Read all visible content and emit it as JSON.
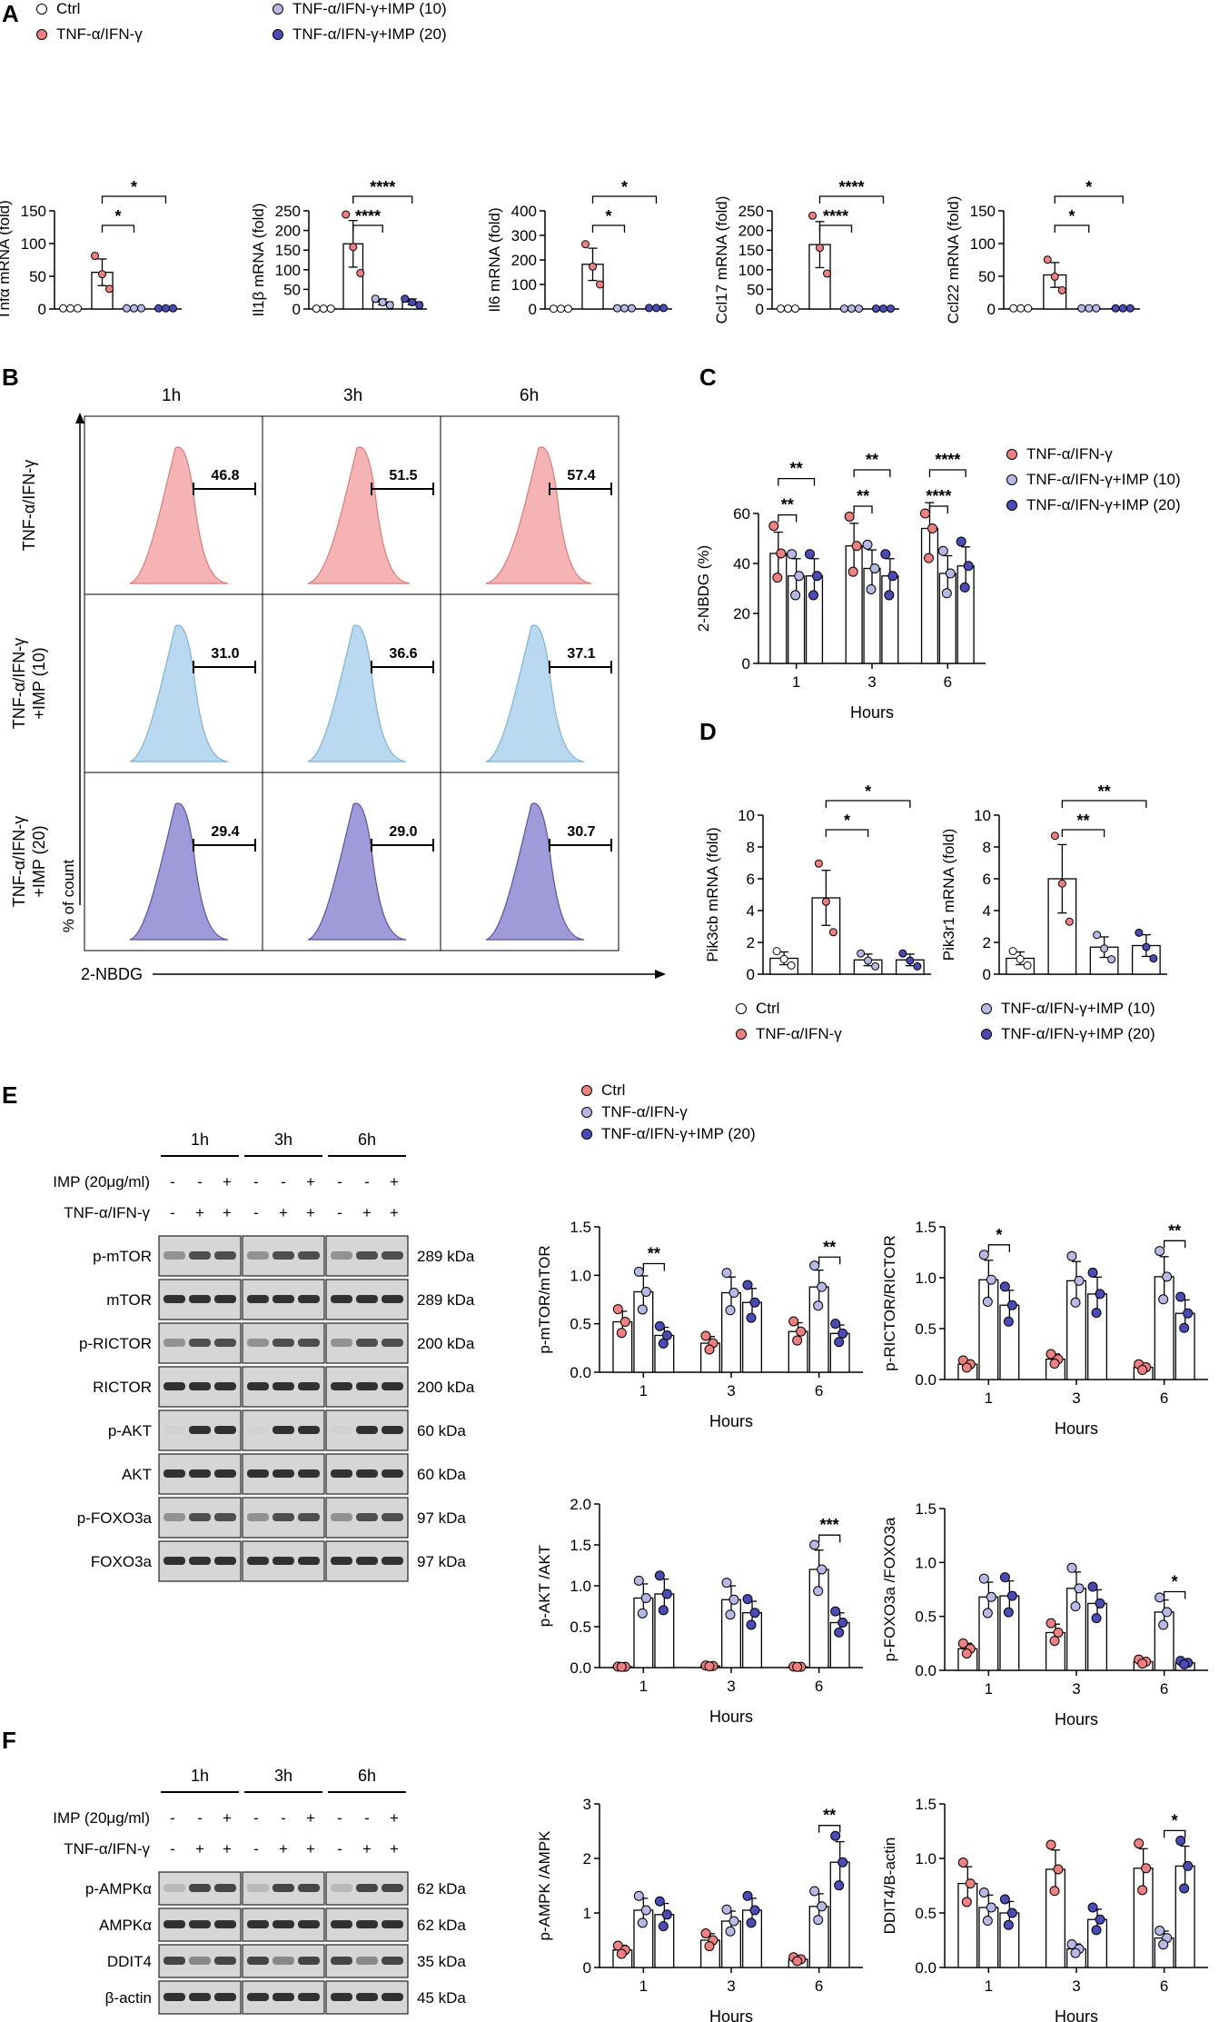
{
  "colors": {
    "ctrl": "#ffffff",
    "tnf": "#f07f7f",
    "imp10": "#b8b8e6",
    "imp20": "#4b4bb8",
    "flow_tnf": "#f6b3b3",
    "flow_imp10": "#b8d9f0",
    "flow_imp20": "#9f9ad8"
  },
  "panels": {
    "a": "A",
    "b": "B",
    "c": "C",
    "d": "D",
    "e": "E",
    "f": "F"
  },
  "legend_a": [
    "Ctrl",
    "TNF-α/IFN-γ",
    "TNF-α/IFN-γ+IMP (10)",
    "TNF-α/IFN-γ+IMP (20)"
  ],
  "legend_c": [
    "TNF-α/IFN-γ",
    "TNF-α/IFN-γ+IMP (10)",
    "TNF-α/IFN-γ+IMP (20)"
  ],
  "legend_d": [
    "Ctrl",
    "TNF-α/IFN-γ",
    "TNF-α/IFN-γ+IMP (10)",
    "TNF-α/IFN-γ+IMP (20)"
  ],
  "legend_e": [
    "Ctrl",
    "TNF-α/IFN-γ",
    "TNF-α/IFN-γ+IMP (20)"
  ],
  "flow": {
    "times": [
      "1h",
      "3h",
      "6h"
    ],
    "rows": [
      "TNF-α/IFN-γ",
      "TNF-α/IFN-γ\n+IMP (10)",
      "TNF-α/IFN-γ\n+IMP (20)"
    ],
    "values": [
      [
        "46.8",
        "51.5",
        "57.4"
      ],
      [
        "31.0",
        "36.6",
        "37.1"
      ],
      [
        "29.4",
        "29.0",
        "30.7"
      ]
    ],
    "ylabel": "% of count",
    "xlabel": "2-NBDG"
  },
  "chart_data": [
    {
      "id": "a1",
      "type": "bar",
      "ylabel": "Tnfα mRNA (fold)",
      "ylim": [
        0,
        150
      ],
      "ticks": [
        0,
        50,
        100,
        150
      ],
      "categories": [
        "Ctrl",
        "TNF-α/IFN-γ",
        "IMP (10)",
        "IMP (20)"
      ],
      "values": [
        1,
        56,
        1,
        1
      ],
      "sig": [
        {
          "from": 1,
          "to": 2,
          "label": "*"
        },
        {
          "from": 1,
          "to": 3,
          "label": "*"
        }
      ]
    },
    {
      "id": "a2",
      "type": "bar",
      "ylabel": "Il1β mRNA (fold)",
      "ylim": [
        0,
        250
      ],
      "ticks": [
        0,
        50,
        100,
        150,
        200,
        250
      ],
      "categories": [
        "Ctrl",
        "TNF-α/IFN-γ",
        "IMP (10)",
        "IMP (20)"
      ],
      "values": [
        1,
        166,
        18,
        18
      ],
      "sig": [
        {
          "from": 1,
          "to": 2,
          "label": "****"
        },
        {
          "from": 1,
          "to": 3,
          "label": "****"
        }
      ]
    },
    {
      "id": "a3",
      "type": "bar",
      "ylabel": "Il6 mRNA (fold)",
      "ylim": [
        0,
        400
      ],
      "ticks": [
        0,
        100,
        200,
        300,
        400
      ],
      "categories": [
        "Ctrl",
        "TNF-α/IFN-γ",
        "IMP (10)",
        "IMP (20)"
      ],
      "values": [
        1,
        182,
        3,
        4
      ],
      "sig": [
        {
          "from": 1,
          "to": 2,
          "label": "*"
        },
        {
          "from": 1,
          "to": 3,
          "label": "*"
        }
      ]
    },
    {
      "id": "a4",
      "type": "bar",
      "ylabel": "Ccl17 mRNA (fold)",
      "ylim": [
        0,
        250
      ],
      "ticks": [
        0,
        50,
        100,
        150,
        200,
        250
      ],
      "categories": [
        "Ctrl",
        "TNF-α/IFN-γ",
        "IMP (10)",
        "IMP (20)"
      ],
      "values": [
        1,
        164,
        1,
        1
      ],
      "sig": [
        {
          "from": 1,
          "to": 2,
          "label": "****"
        },
        {
          "from": 1,
          "to": 3,
          "label": "****"
        }
      ]
    },
    {
      "id": "a5",
      "type": "bar",
      "ylabel": "Ccl22 mRNA (fold)",
      "ylim": [
        0,
        150
      ],
      "ticks": [
        0,
        50,
        100,
        150
      ],
      "categories": [
        "Ctrl",
        "TNF-α/IFN-γ",
        "IMP (10)",
        "IMP (20)"
      ],
      "values": [
        1,
        52,
        1,
        1
      ],
      "sig": [
        {
          "from": 1,
          "to": 2,
          "label": "*"
        },
        {
          "from": 1,
          "to": 3,
          "label": "*"
        }
      ]
    },
    {
      "id": "c",
      "type": "bar",
      "ylabel": "2-NBDG (%)",
      "xlabel": "Hours",
      "ylim": [
        0,
        60
      ],
      "ticks": [
        0,
        20,
        40,
        60
      ],
      "categories": [
        "1",
        "3",
        "6"
      ],
      "series": [
        {
          "name": "TNF-α/IFN-γ",
          "values": [
            44,
            47,
            54
          ]
        },
        {
          "name": "TNF-α/IFN-γ+IMP (10)",
          "values": [
            35,
            38,
            36
          ]
        },
        {
          "name": "TNF-α/IFN-γ+IMP (20)",
          "values": [
            35,
            35,
            39
          ]
        }
      ],
      "sig": [
        {
          "g": 0,
          "from": 0,
          "to": 1,
          "label": "**"
        },
        {
          "g": 0,
          "from": 0,
          "to": 2,
          "label": "**"
        },
        {
          "g": 1,
          "from": 0,
          "to": 1,
          "label": "**"
        },
        {
          "g": 1,
          "from": 0,
          "to": 2,
          "label": "**"
        },
        {
          "g": 2,
          "from": 0,
          "to": 1,
          "label": "****"
        },
        {
          "g": 2,
          "from": 0,
          "to": 2,
          "label": "****"
        }
      ]
    },
    {
      "id": "d1",
      "type": "bar",
      "ylabel": "Pik3cb mRNA (fold)",
      "ylim": [
        0,
        10
      ],
      "ticks": [
        0,
        2,
        4,
        6,
        8,
        10
      ],
      "categories": [
        "Ctrl",
        "TNF-α/IFN-γ",
        "IMP (10)",
        "IMP (20)"
      ],
      "values": [
        1,
        4.8,
        0.9,
        0.9
      ],
      "sig": [
        {
          "from": 1,
          "to": 2,
          "label": "*"
        },
        {
          "from": 1,
          "to": 3,
          "label": "*"
        }
      ]
    },
    {
      "id": "d2",
      "type": "bar",
      "ylabel": "Pik3r1 mRNA (fold)",
      "ylim": [
        0,
        10
      ],
      "ticks": [
        0,
        2,
        4,
        6,
        8,
        10
      ],
      "categories": [
        "Ctrl",
        "TNF-α/IFN-γ",
        "IMP (10)",
        "IMP (20)"
      ],
      "values": [
        1,
        6,
        1.7,
        1.8
      ],
      "sig": [
        {
          "from": 1,
          "to": 2,
          "label": "**"
        },
        {
          "from": 1,
          "to": 3,
          "label": "**"
        }
      ]
    },
    {
      "id": "e1",
      "type": "bar",
      "ylabel": "p-mTOR/mTOR",
      "xlabel": "Hours",
      "ylim": [
        0,
        1.5
      ],
      "ticks": [
        0,
        0.5,
        1.0,
        1.5
      ],
      "categories": [
        "1",
        "3",
        "6"
      ],
      "series": [
        {
          "name": "Ctrl",
          "values": [
            0.52,
            0.3,
            0.42
          ]
        },
        {
          "name": "TNF-α/IFN-γ",
          "values": [
            0.83,
            0.82,
            0.88
          ]
        },
        {
          "name": "TNF-α/IFN-γ+IMP (20)",
          "values": [
            0.38,
            0.72,
            0.4
          ]
        }
      ],
      "sig": [
        {
          "g": 0,
          "from": 1,
          "to": 2,
          "label": "**"
        },
        {
          "g": 2,
          "from": 1,
          "to": 2,
          "label": "**"
        }
      ]
    },
    {
      "id": "e2",
      "type": "bar",
      "ylabel": "p-RICTOR/RICTOR",
      "xlabel": "Hours",
      "ylim": [
        0,
        1.5
      ],
      "ticks": [
        0,
        0.5,
        1.0,
        1.5
      ],
      "categories": [
        "1",
        "3",
        "6"
      ],
      "series": [
        {
          "name": "Ctrl",
          "values": [
            0.15,
            0.2,
            0.12
          ]
        },
        {
          "name": "TNF-α/IFN-γ",
          "values": [
            0.98,
            0.97,
            1.01
          ]
        },
        {
          "name": "TNF-α/IFN-γ+IMP (20)",
          "values": [
            0.73,
            0.84,
            0.65
          ]
        }
      ],
      "sig": [
        {
          "g": 0,
          "from": 1,
          "to": 2,
          "label": "*"
        },
        {
          "g": 2,
          "from": 1,
          "to": 2,
          "label": "**"
        }
      ]
    },
    {
      "id": "e3",
      "type": "bar",
      "ylabel": "p-AKT /AKT",
      "xlabel": "Hours",
      "ylim": [
        0,
        2.0
      ],
      "ticks": [
        0,
        0.5,
        1.0,
        1.5,
        2.0
      ],
      "categories": [
        "1",
        "3",
        "6"
      ],
      "series": [
        {
          "name": "Ctrl",
          "values": [
            0.01,
            0.02,
            0.01
          ]
        },
        {
          "name": "TNF-α/IFN-γ",
          "values": [
            0.85,
            0.83,
            1.2
          ]
        },
        {
          "name": "TNF-α/IFN-γ+IMP (20)",
          "values": [
            0.9,
            0.67,
            0.55
          ]
        }
      ],
      "sig": [
        {
          "g": 2,
          "from": 1,
          "to": 2,
          "label": "***"
        }
      ]
    },
    {
      "id": "e4",
      "type": "bar",
      "ylabel": "p-FOXO3a /FOXO3a",
      "xlabel": "Hours",
      "ylim": [
        0,
        1.5
      ],
      "ticks": [
        0,
        0.5,
        1.0,
        1.5
      ],
      "categories": [
        "1",
        "3",
        "6"
      ],
      "series": [
        {
          "name": "Ctrl",
          "values": [
            0.2,
            0.35,
            0.08
          ]
        },
        {
          "name": "TNF-α/IFN-γ",
          "values": [
            0.68,
            0.76,
            0.54
          ]
        },
        {
          "name": "TNF-α/IFN-γ+IMP (20)",
          "values": [
            0.69,
            0.62,
            0.07
          ]
        }
      ],
      "sig": [
        {
          "g": 2,
          "from": 1,
          "to": 2,
          "label": "*"
        }
      ]
    },
    {
      "id": "f1",
      "type": "bar",
      "ylabel": "p-AMPK /AMPK",
      "xlabel": "Hours",
      "ylim": [
        0,
        3
      ],
      "ticks": [
        0,
        1,
        2,
        3
      ],
      "categories": [
        "1",
        "3",
        "6"
      ],
      "series": [
        {
          "name": "Ctrl",
          "values": [
            0.32,
            0.5,
            0.15
          ]
        },
        {
          "name": "TNF-α/IFN-γ",
          "values": [
            1.05,
            0.85,
            1.12
          ]
        },
        {
          "name": "TNF-α/IFN-γ+IMP (20)",
          "values": [
            0.97,
            1.05,
            1.93
          ]
        }
      ],
      "sig": [
        {
          "g": 2,
          "from": 1,
          "to": 2,
          "label": "**"
        }
      ]
    },
    {
      "id": "f2",
      "type": "bar",
      "ylabel": "DDIT4/B-actin",
      "xlabel": "Hours",
      "ylim": [
        0,
        1.5
      ],
      "ticks": [
        0,
        0.5,
        1.0,
        1.5
      ],
      "categories": [
        "1",
        "3",
        "6"
      ],
      "series": [
        {
          "name": "Ctrl",
          "values": [
            0.77,
            0.9,
            0.91
          ]
        },
        {
          "name": "TNF-α/IFN-γ",
          "values": [
            0.55,
            0.17,
            0.27
          ]
        },
        {
          "name": "TNF-α/IFN-γ+IMP (20)",
          "values": [
            0.5,
            0.44,
            0.93
          ]
        }
      ],
      "sig": [
        {
          "g": 2,
          "from": 1,
          "to": 2,
          "label": "*"
        }
      ]
    }
  ],
  "blot_e": {
    "times": [
      "1h",
      "3h",
      "6h"
    ],
    "imp_label": "IMP (20μg/ml)",
    "tnf_label": "TNF-α/IFN-γ",
    "imp_signs": [
      "-",
      "-",
      "+"
    ],
    "tnf_signs": [
      "-",
      "+",
      "+"
    ],
    "rows": [
      {
        "name": "p-mTOR",
        "kda": "289 kDa"
      },
      {
        "name": "mTOR",
        "kda": "289 kDa"
      },
      {
        "name": "p-RICTOR",
        "kda": "200 kDa"
      },
      {
        "name": "RICTOR",
        "kda": "200 kDa"
      },
      {
        "name": "p-AKT",
        "kda": "60 kDa"
      },
      {
        "name": "AKT",
        "kda": "60 kDa"
      },
      {
        "name": "p-FOXO3a",
        "kda": "97 kDa"
      },
      {
        "name": "FOXO3a",
        "kda": "97 kDa"
      }
    ]
  },
  "blot_f": {
    "times": [
      "1h",
      "3h",
      "6h"
    ],
    "imp_label": "IMP (20μg/ml)",
    "tnf_label": "TNF-α/IFN-γ",
    "imp_signs": [
      "-",
      "-",
      "+"
    ],
    "tnf_signs": [
      "-",
      "+",
      "+"
    ],
    "rows": [
      {
        "name": "p-AMPKα",
        "kda": "62 kDa"
      },
      {
        "name": "AMPKα",
        "kda": "62 kDa"
      },
      {
        "name": "DDIT4",
        "kda": "35 kDa"
      },
      {
        "name": "β-actin",
        "kda": "45 kDa"
      }
    ]
  }
}
